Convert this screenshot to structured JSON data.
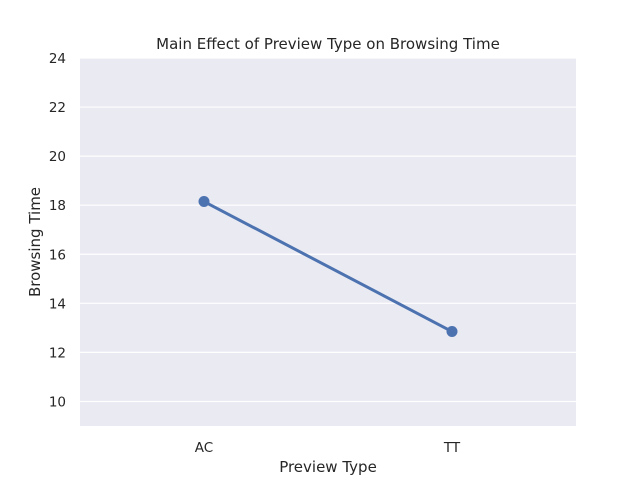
{
  "chart_data": {
    "type": "line",
    "title": "Main Effect of Preview Type on Browsing Time",
    "xlabel": "Preview Type",
    "ylabel": "Browsing Time",
    "categories": [
      "AC",
      "TT"
    ],
    "series": [
      {
        "values": [
          18.15,
          12.85
        ],
        "color": "#4c72b0"
      }
    ],
    "ylim": [
      9.0,
      24.0
    ],
    "yticks": [
      10,
      12,
      14,
      16,
      18,
      20,
      22,
      24
    ],
    "grid": true,
    "background_color": "#eaeaf2",
    "grid_color": "#ffffff"
  }
}
